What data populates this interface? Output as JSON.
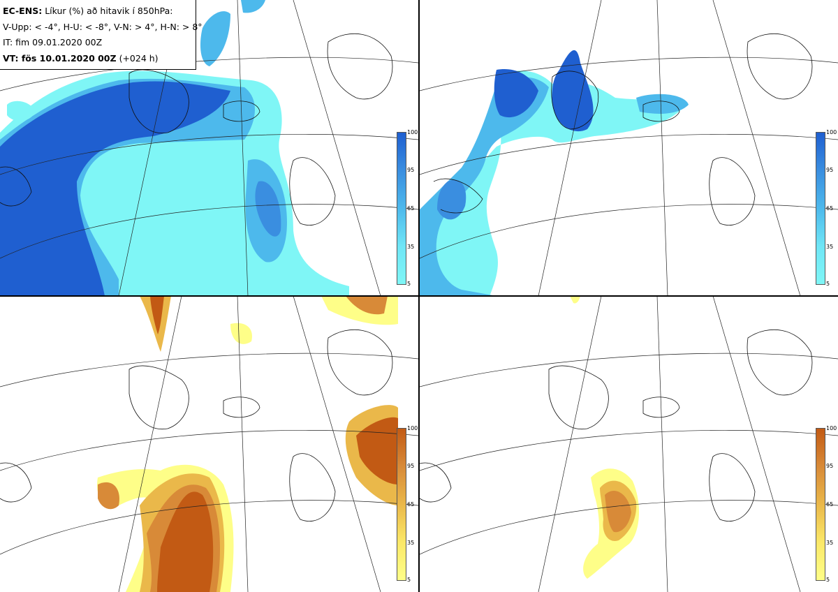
{
  "title_box": {
    "line1_bold": "EC-ENS:",
    "line1_rest": "Líkur (%) að hitavik í 850hPa:",
    "line2": "V-Upp: < -4°, H-U: < -8°, V-N: > 4°, H-N: > 8°",
    "line3": "IT: fim 09.01.2020 00Z",
    "line4_bold": "VT: fös 10.01.2020 00Z",
    "line4_rest": "(+024 h)"
  },
  "panels": [
    {
      "name": "V-Upp",
      "threshold": "< -4°",
      "colorscale": "blue"
    },
    {
      "name": "H-U",
      "threshold": "< -8°",
      "colorscale": "blue"
    },
    {
      "name": "V-N",
      "threshold": "> 4°",
      "colorscale": "orange"
    },
    {
      "name": "H-N",
      "threshold": "> 8°",
      "colorscale": "orange"
    }
  ],
  "colorbar": {
    "ticks": [
      "100",
      "95",
      "65",
      "35",
      "5"
    ],
    "blue_colors": [
      "#7ff6f6",
      "#4db9ec",
      "#3a8ee0",
      "#1f5fd0"
    ],
    "orange_colors": [
      "#fefe88",
      "#eab84a",
      "#d88a38",
      "#c25a14"
    ]
  }
}
